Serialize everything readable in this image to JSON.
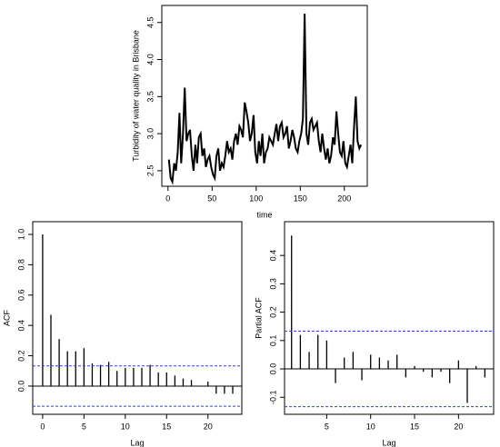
{
  "chart_data": [
    {
      "type": "line",
      "xlabel": "time",
      "ylabel": "Turbidity of water quality in Brisbane",
      "color": "#000000",
      "x": [
        1,
        3,
        5,
        7,
        9,
        11,
        13,
        15,
        17,
        19,
        21,
        23,
        25,
        27,
        29,
        31,
        33,
        35,
        37,
        39,
        41,
        43,
        45,
        47,
        49,
        51,
        53,
        55,
        57,
        59,
        61,
        63,
        65,
        67,
        69,
        71,
        73,
        75,
        77,
        79,
        81,
        83,
        85,
        87,
        89,
        91,
        93,
        95,
        97,
        99,
        101,
        103,
        105,
        107,
        109,
        111,
        113,
        115,
        117,
        119,
        121,
        123,
        125,
        127,
        129,
        131,
        133,
        135,
        137,
        139,
        141,
        143,
        145,
        147,
        149,
        151,
        153,
        155,
        157,
        159,
        161,
        163,
        165,
        167,
        169,
        171,
        173,
        175,
        177,
        179,
        181,
        183,
        185,
        187,
        189,
        191,
        193,
        195,
        197,
        199,
        201,
        203,
        205,
        207,
        209,
        211,
        213,
        215,
        217,
        219
      ],
      "values": [
        2.65,
        2.4,
        2.35,
        2.6,
        2.5,
        2.75,
        3.28,
        2.6,
        3.0,
        3.62,
        2.9,
        3.0,
        3.05,
        2.7,
        2.5,
        2.85,
        2.6,
        2.95,
        3.0,
        2.7,
        2.8,
        2.55,
        2.65,
        2.7,
        2.55,
        2.45,
        2.4,
        2.7,
        2.8,
        2.5,
        2.6,
        2.55,
        2.7,
        2.9,
        2.75,
        2.8,
        2.65,
        2.9,
        3.0,
        2.85,
        3.1,
        3.05,
        2.95,
        3.42,
        3.3,
        3.15,
        2.9,
        3.0,
        3.25,
        2.75,
        2.6,
        2.9,
        2.7,
        3.0,
        2.6,
        2.75,
        2.8,
        2.95,
        2.9,
        2.85,
        3.0,
        3.13,
        2.9,
        3.1,
        3.15,
        2.95,
        3.0,
        3.1,
        2.8,
        2.9,
        3.05,
        2.95,
        2.8,
        2.75,
        2.9,
        3.0,
        3.2,
        4.62,
        3.0,
        2.85,
        3.15,
        3.2,
        3.05,
        3.1,
        3.15,
        2.9,
        2.75,
        3.0,
        2.8,
        2.65,
        2.8,
        2.6,
        2.7,
        2.95,
        2.85,
        3.3,
        3.0,
        2.75,
        2.7,
        2.9,
        2.6,
        2.55,
        2.7,
        2.85,
        2.6,
        3.1,
        3.5,
        2.9,
        2.8,
        2.85
      ],
      "xlim": [
        -7,
        226
      ],
      "xticks": [
        0,
        50,
        100,
        150,
        200
      ],
      "ylim": [
        2.29,
        4.73
      ],
      "yticks": [
        2.5,
        {
          "value": 3,
          "label": "3.0"
        },
        3.5,
        {
          "value": 4,
          "label": "4.0"
        },
        4.5
      ]
    },
    {
      "type": "bar",
      "xlabel": "Lag",
      "ylabel": "ACF",
      "color": "#000000",
      "bound_color": "#3b3bd6",
      "x": [
        0,
        1,
        2,
        3,
        4,
        5,
        6,
        7,
        8,
        9,
        10,
        11,
        12,
        13,
        14,
        15,
        16,
        17,
        18,
        19,
        20,
        21,
        22,
        23
      ],
      "values": [
        1.0,
        0.47,
        0.31,
        0.23,
        0.23,
        0.25,
        0.15,
        0.14,
        0.16,
        0.1,
        0.12,
        0.12,
        0.12,
        0.14,
        0.09,
        0.09,
        0.07,
        0.05,
        0.04,
        0.0,
        0.03,
        -0.05,
        -0.05,
        -0.05
      ],
      "bounds": [
        0.133,
        -0.133
      ],
      "xlim": [
        -1.2,
        24.1
      ],
      "xticks": [
        0,
        5,
        10,
        15,
        20
      ],
      "ylim": [
        -0.186,
        1.084
      ],
      "yticks": [
        {
          "value": 0,
          "label": "0.0"
        },
        0.2,
        0.4,
        0.6,
        0.8,
        {
          "value": 1,
          "label": "1.0"
        }
      ]
    },
    {
      "type": "bar",
      "xlabel": "Lag",
      "ylabel": "Partial ACF",
      "color": "#000000",
      "bound_color": "#3b3bd6",
      "x": [
        1,
        2,
        3,
        4,
        5,
        6,
        7,
        8,
        9,
        10,
        11,
        12,
        13,
        14,
        15,
        16,
        17,
        18,
        19,
        20,
        21,
        22,
        23
      ],
      "values": [
        0.47,
        0.12,
        0.06,
        0.12,
        0.1,
        -0.05,
        0.04,
        0.06,
        -0.04,
        0.05,
        0.04,
        0.03,
        0.05,
        -0.03,
        0.01,
        -0.01,
        -0.03,
        -0.01,
        -0.05,
        0.03,
        -0.12,
        0.01,
        -0.03
      ],
      "bounds": [
        0.133,
        -0.133
      ],
      "xlim": [
        0.2,
        24
      ],
      "xticks": [
        5,
        10,
        15,
        20
      ],
      "ylim": [
        -0.16,
        0.519
      ],
      "yticks": [
        -0.1,
        {
          "value": 0,
          "label": "0.0"
        },
        0.1,
        0.2,
        0.3,
        0.4
      ]
    }
  ]
}
